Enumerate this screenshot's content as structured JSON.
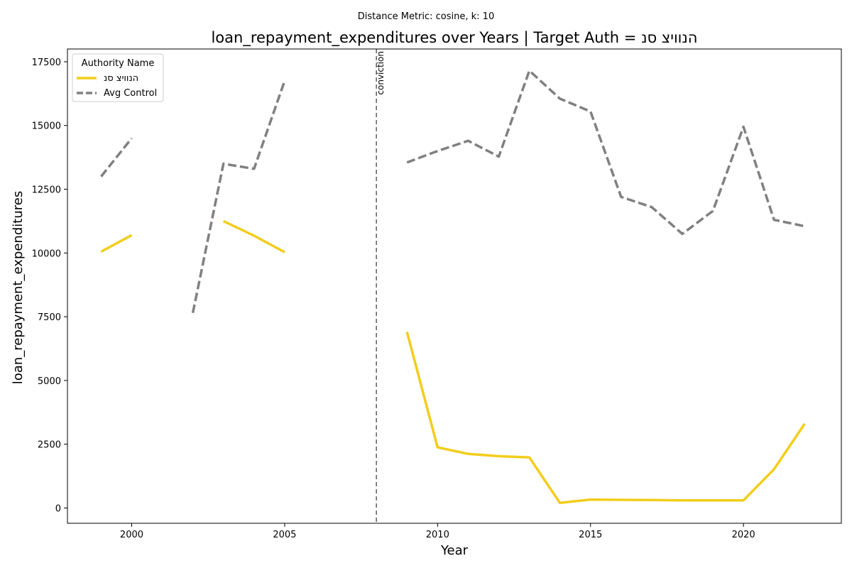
{
  "chart_data": {
    "type": "line",
    "suptitle": "Distance Metric: cosine, k: 10",
    "title": "loan_repayment_expenditures over Years | Target Auth = הנוויצ סנ",
    "xlabel": "Year",
    "ylabel": "loan_repayment_expenditures",
    "xlim": [
      1997.9,
      2023.2
    ],
    "ylim": [
      -600,
      18000
    ],
    "xticks": [
      2000,
      2005,
      2010,
      2015,
      2020
    ],
    "yticks": [
      0,
      2500,
      5000,
      7500,
      10000,
      12500,
      15000,
      17500
    ],
    "grid": false,
    "legend": {
      "title": "Authority Name",
      "placement": "top-left"
    },
    "annotations": [
      {
        "x": 2008,
        "text": "conviction",
        "style": "dashed-vertical-line"
      }
    ],
    "series": [
      {
        "name": "הנוויצ סנ",
        "color": "#f2cd1c",
        "dash": "solid",
        "points": [
          [
            1999,
            10050
          ],
          [
            2000,
            10700
          ],
          [
            2001,
            null
          ],
          [
            2002,
            null
          ],
          [
            2003,
            11250
          ],
          [
            2004,
            10680
          ],
          [
            2005,
            10030
          ],
          [
            2006,
            null
          ],
          [
            2007,
            null
          ],
          [
            2008,
            null
          ],
          [
            2009,
            6900
          ],
          [
            2010,
            2380
          ],
          [
            2011,
            2120
          ],
          [
            2012,
            2030
          ],
          [
            2013,
            1980
          ],
          [
            2014,
            200
          ],
          [
            2015,
            330
          ],
          [
            2016,
            320
          ],
          [
            2017,
            310
          ],
          [
            2018,
            300
          ],
          [
            2019,
            300
          ],
          [
            2020,
            300
          ],
          [
            2021,
            1520
          ],
          [
            2022,
            3300
          ]
        ]
      },
      {
        "name": "Avg Control",
        "color": "#808080",
        "dash": "dashed",
        "points": [
          [
            1999,
            13000
          ],
          [
            2000,
            14500
          ],
          [
            2001,
            null
          ],
          [
            2002,
            7650
          ],
          [
            2003,
            13500
          ],
          [
            2004,
            13300
          ],
          [
            2005,
            16750
          ],
          [
            2006,
            null
          ],
          [
            2007,
            null
          ],
          [
            2008,
            null
          ],
          [
            2009,
            13550
          ],
          [
            2010,
            14000
          ],
          [
            2011,
            14400
          ],
          [
            2012,
            13780
          ],
          [
            2013,
            17150
          ],
          [
            2014,
            16050
          ],
          [
            2015,
            15550
          ],
          [
            2016,
            12200
          ],
          [
            2017,
            11800
          ],
          [
            2018,
            10750
          ],
          [
            2019,
            11650
          ],
          [
            2020,
            14950
          ],
          [
            2021,
            11300
          ],
          [
            2022,
            11050
          ]
        ]
      }
    ]
  }
}
